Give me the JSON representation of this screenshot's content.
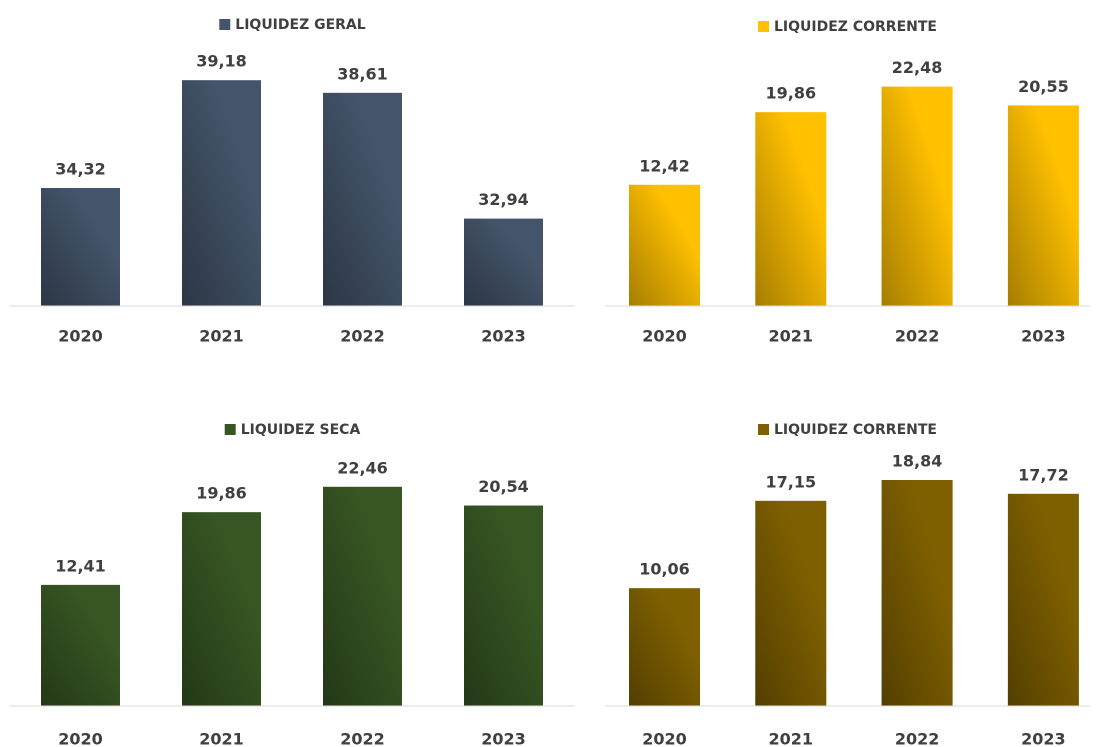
{
  "chart_data": [
    {
      "type": "bar",
      "categories": [
        "2020",
        "2021",
        "2022",
        "2023"
      ],
      "ylim": [
        29,
        40
      ],
      "series": [
        {
          "name": "LIQUIDEZ GERAL",
          "color": "#44546a",
          "values": [
            34.32,
            39.18,
            38.61,
            32.94
          ],
          "value_labels": [
            "34,32",
            "39,18",
            "38,61",
            "32,94"
          ]
        }
      ]
    },
    {
      "type": "bar",
      "categories": [
        "2020",
        "2021",
        "2022",
        "2023"
      ],
      "ylim": [
        0,
        25
      ],
      "series": [
        {
          "name": "LIQUIDEZ CORRENTE",
          "color": "#ffc000",
          "values": [
            12.42,
            19.86,
            22.48,
            20.55
          ],
          "value_labels": [
            "12,42",
            "19,86",
            "22,48",
            "20,55"
          ]
        }
      ]
    },
    {
      "type": "bar",
      "categories": [
        "2020",
        "2021",
        "2022",
        "2023"
      ],
      "ylim": [
        0,
        25
      ],
      "series": [
        {
          "name": "LIQUIDEZ SECA",
          "color": "#375623",
          "values": [
            12.41,
            19.86,
            22.46,
            20.54
          ],
          "value_labels": [
            "12,41",
            "19,86",
            "22,46",
            "20,54"
          ]
        }
      ]
    },
    {
      "type": "bar",
      "categories": [
        "2020",
        "2021",
        "2022",
        "2023"
      ],
      "ylim": [
        0.5,
        20.3
      ],
      "series": [
        {
          "name": "LIQUIDEZ CORRENTE",
          "color": "#7f6000",
          "values": [
            10.06,
            17.15,
            18.84,
            17.72
          ],
          "value_labels": [
            "10,06",
            "17,15",
            "18,84",
            "17,72"
          ]
        }
      ]
    }
  ]
}
